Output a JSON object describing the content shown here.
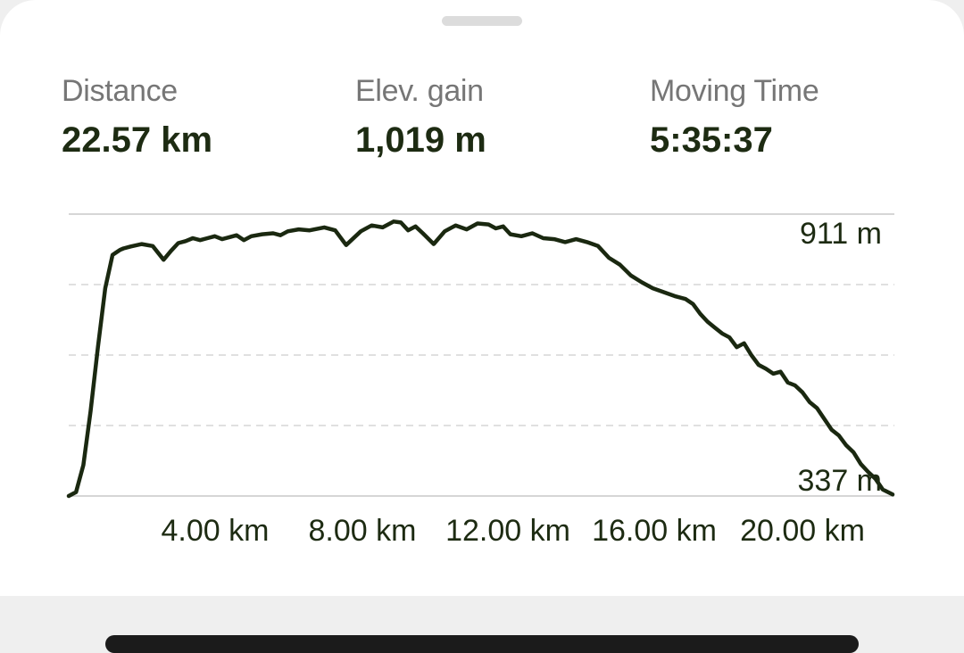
{
  "stats": {
    "distance_label": "Distance",
    "distance_value": "22.57 km",
    "elev_label": "Elev. gain",
    "elev_value": "1,019 m",
    "time_label": "Moving Time",
    "time_value": "5:35:37"
  },
  "colors": {
    "line": "#1a2810",
    "text": "#1d2b12",
    "label": "#767676",
    "grid": "#d6d6d6"
  },
  "chart_data": {
    "type": "line",
    "y_max_label": "911 m",
    "y_min_label": "337 m",
    "x_tick_labels": [
      "4.00 km",
      "8.00 km",
      "12.00 km",
      "16.00 km",
      "20.00 km"
    ],
    "x_ticks": [
      4,
      8,
      12,
      16,
      20
    ],
    "xlim": [
      0,
      22.57
    ],
    "ylim": [
      337,
      911
    ],
    "grid": "dashed horizontal",
    "x": [
      0,
      0.2,
      0.4,
      0.6,
      0.8,
      1.0,
      1.2,
      1.4,
      1.5,
      1.7,
      2.0,
      2.3,
      2.6,
      2.8,
      3.0,
      3.2,
      3.4,
      3.6,
      3.8,
      4.0,
      4.2,
      4.4,
      4.6,
      4.8,
      5.0,
      5.3,
      5.6,
      5.8,
      6.0,
      6.3,
      6.6,
      7.0,
      7.3,
      7.6,
      8.0,
      8.3,
      8.6,
      8.9,
      9.1,
      9.3,
      9.5,
      9.7,
      10.0,
      10.3,
      10.6,
      10.9,
      11.2,
      11.5,
      11.7,
      11.9,
      12.1,
      12.4,
      12.7,
      13.0,
      13.3,
      13.6,
      13.9,
      14.2,
      14.5,
      14.8,
      15.1,
      15.4,
      15.7,
      16.0,
      16.3,
      16.6,
      16.9,
      17.1,
      17.3,
      17.5,
      17.7,
      17.9,
      18.1,
      18.3,
      18.5,
      18.7,
      18.9,
      19.1,
      19.3,
      19.5,
      19.7,
      19.9,
      20.1,
      20.3,
      20.5,
      20.7,
      20.9,
      21.1,
      21.3,
      21.5,
      21.7,
      21.9,
      22.1,
      22.3,
      22.57
    ],
    "y": [
      337,
      345,
      400,
      510,
      640,
      760,
      828,
      838,
      841,
      845,
      850,
      846,
      818,
      836,
      852,
      856,
      862,
      858,
      862,
      866,
      860,
      864,
      868,
      858,
      866,
      870,
      872,
      868,
      876,
      880,
      878,
      884,
      878,
      848,
      876,
      888,
      884,
      896,
      894,
      878,
      886,
      872,
      850,
      876,
      888,
      880,
      892,
      890,
      882,
      886,
      870,
      866,
      872,
      862,
      860,
      854,
      860,
      854,
      846,
      822,
      808,
      786,
      772,
      760,
      752,
      744,
      738,
      728,
      708,
      692,
      680,
      668,
      660,
      640,
      648,
      624,
      604,
      596,
      586,
      590,
      568,
      562,
      548,
      528,
      516,
      494,
      472,
      460,
      440,
      426,
      402,
      386,
      372,
      350,
      340
    ]
  }
}
